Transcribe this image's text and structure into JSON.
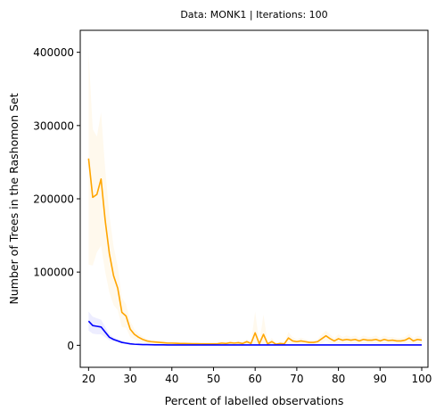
{
  "chart_data": {
    "type": "line",
    "title": "Data: MONK1 | Iterations: 100",
    "xlabel": "Percent of labelled observations",
    "ylabel": "Number of Trees in the Rashomon Set",
    "xlim": [
      18,
      101.5
    ],
    "ylim": [
      -30000,
      430000
    ],
    "xticks": [
      20,
      30,
      40,
      50,
      60,
      70,
      80,
      90,
      100
    ],
    "yticks": [
      0,
      100000,
      200000,
      300000,
      400000
    ],
    "xtick_labels": [
      "20",
      "30",
      "40",
      "50",
      "60",
      "70",
      "80",
      "90",
      "100"
    ],
    "ytick_labels": [
      "0",
      "100000",
      "200000",
      "300000",
      "400000"
    ],
    "grid": false,
    "x": [
      20,
      21,
      22,
      23,
      24,
      25,
      26,
      27,
      28,
      29,
      30,
      31,
      32,
      33,
      34,
      35,
      36,
      37,
      38,
      39,
      40,
      41,
      42,
      43,
      44,
      45,
      46,
      47,
      48,
      49,
      50,
      51,
      52,
      53,
      54,
      55,
      56,
      57,
      58,
      59,
      60,
      61,
      62,
      63,
      64,
      65,
      66,
      67,
      68,
      69,
      70,
      71,
      72,
      73,
      74,
      75,
      76,
      77,
      78,
      79,
      80,
      81,
      82,
      83,
      84,
      85,
      86,
      87,
      88,
      89,
      90,
      91,
      92,
      93,
      94,
      95,
      96,
      97,
      98,
      99,
      100
    ],
    "series": [
      {
        "color": "#ffa500",
        "band_color": "#ffa500",
        "values": [
          255000,
          202000,
          206000,
          227000,
          170000,
          125000,
          95000,
          78000,
          45000,
          40000,
          22000,
          15000,
          11000,
          8000,
          6000,
          5000,
          4500,
          4000,
          3500,
          3000,
          3000,
          2800,
          2500,
          2500,
          2300,
          2200,
          2200,
          2100,
          2000,
          2000,
          2000,
          2200,
          3000,
          2500,
          3500,
          3000,
          3500,
          2500,
          5000,
          2500,
          17000,
          2000,
          15000,
          2000,
          5000,
          1500,
          2500,
          2000,
          10000,
          6000,
          5000,
          6000,
          5000,
          4000,
          4000,
          5000,
          9000,
          13000,
          9000,
          6000,
          9000,
          7000,
          8000,
          7000,
          8000,
          6000,
          8000,
          7000,
          7000,
          8000,
          6000,
          8000,
          6500,
          7000,
          6000,
          6000,
          7000,
          10000,
          6000,
          8000,
          7000
        ],
        "upper": [
          400000,
          295000,
          285000,
          318000,
          240000,
          178000,
          135000,
          108000,
          65000,
          56000,
          33000,
          22000,
          16000,
          12000,
          9000,
          7500,
          6700,
          6000,
          5200,
          4500,
          4500,
          4200,
          3800,
          3700,
          3400,
          3300,
          3300,
          3100,
          3000,
          3000,
          3000,
          3300,
          4800,
          3800,
          5500,
          4600,
          5400,
          3800,
          8500,
          4000,
          46000,
          3500,
          42000,
          3500,
          10000,
          2500,
          4200,
          3300,
          18000,
          11000,
          8500,
          10500,
          8500,
          6500,
          6500,
          8500,
          15000,
          20000,
          15000,
          10000,
          15000,
          11500,
          13500,
          11500,
          13500,
          10000,
          13500,
          11500,
          11500,
          13500,
          10000,
          13500,
          11000,
          11500,
          10000,
          10000,
          11500,
          16000,
          10000,
          13000,
          11500
        ],
        "lower": [
          110000,
          109000,
          127000,
          136000,
          100000,
          72000,
          55000,
          48000,
          25000,
          24000,
          11000,
          8000,
          6000,
          4000,
          3000,
          2500,
          2300,
          2000,
          1800,
          1500,
          1500,
          1400,
          1200,
          1300,
          1200,
          1100,
          1100,
          1100,
          1000,
          1000,
          1000,
          1100,
          1200,
          1200,
          1500,
          1400,
          1600,
          1200,
          1500,
          1000,
          0,
          500,
          0,
          500,
          0,
          500,
          800,
          700,
          2000,
          1000,
          1500,
          1500,
          1500,
          1500,
          1500,
          1500,
          3000,
          6000,
          3000,
          2000,
          3000,
          2500,
          2500,
          2500,
          2500,
          2000,
          2500,
          2500,
          2500,
          2500,
          2000,
          2500,
          2000,
          2500,
          2000,
          2000,
          2500,
          4000,
          2000,
          3000,
          2500
        ]
      },
      {
        "color": "#0000ff",
        "band_color": "#0000ff",
        "values": [
          33000,
          27000,
          26000,
          25000,
          18000,
          11000,
          8000,
          6000,
          4000,
          3000,
          2000,
          1500,
          1200,
          1000,
          900,
          800,
          700,
          650,
          600,
          550,
          500,
          500,
          500,
          500,
          500,
          500,
          500,
          500,
          500,
          500,
          500,
          500,
          500,
          500,
          500,
          500,
          500,
          500,
          500,
          500,
          500,
          500,
          500,
          500,
          500,
          500,
          500,
          500,
          500,
          500,
          500,
          500,
          500,
          500,
          500,
          500,
          500,
          500,
          500,
          500,
          500,
          500,
          500,
          500,
          500,
          500,
          500,
          500,
          500,
          500,
          500,
          500,
          500,
          500,
          500,
          500,
          500,
          500,
          500,
          500,
          500
        ],
        "upper": [
          46000,
          39000,
          37000,
          35000,
          25000,
          15000,
          11000,
          8000,
          5500,
          4200,
          2900,
          2100,
          1700,
          1400,
          1250,
          1100,
          950,
          900,
          820,
          750,
          700,
          700,
          700,
          700,
          700,
          700,
          700,
          700,
          700,
          700,
          700,
          700,
          700,
          700,
          700,
          700,
          700,
          700,
          700,
          700,
          700,
          700,
          700,
          700,
          700,
          700,
          700,
          700,
          700,
          700,
          700,
          700,
          700,
          700,
          700,
          700,
          700,
          700,
          700,
          700,
          700,
          700,
          700,
          700,
          700,
          700,
          700,
          700,
          700,
          700,
          700,
          700,
          700,
          700,
          700,
          700,
          700,
          700,
          700,
          700,
          700
        ],
        "lower": [
          20000,
          16000,
          15000,
          15000,
          11000,
          7000,
          5000,
          4000,
          2500,
          1800,
          1100,
          900,
          700,
          600,
          550,
          500,
          450,
          400,
          380,
          350,
          300,
          300,
          300,
          300,
          300,
          300,
          300,
          300,
          300,
          300,
          300,
          300,
          300,
          300,
          300,
          300,
          300,
          300,
          300,
          300,
          300,
          300,
          300,
          300,
          300,
          300,
          300,
          300,
          300,
          300,
          300,
          300,
          300,
          300,
          300,
          300,
          300,
          300,
          300,
          300,
          300,
          300,
          300,
          300,
          300,
          300,
          300,
          300,
          300,
          300,
          300,
          300,
          300,
          300,
          300,
          300,
          300,
          300,
          300,
          300,
          300
        ]
      }
    ]
  }
}
